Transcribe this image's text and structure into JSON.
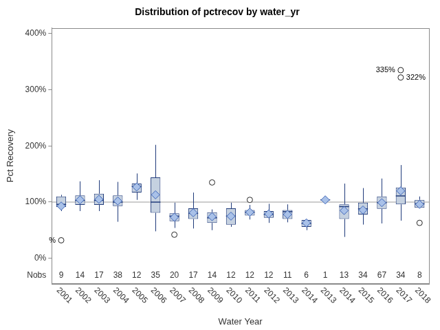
{
  "chart_data": {
    "type": "box",
    "title": "Distribution of pctrecov by water_yr",
    "x_label": "Water Year",
    "y_label": "Pct Recovery",
    "categories": [
      "2001",
      "2002",
      "2003",
      "2004",
      "2005",
      "2006",
      "2007",
      "2008",
      "2009",
      "2010",
      "2011",
      "2012",
      "2013",
      "2014",
      "2013",
      "2014",
      "2015",
      "2016",
      "2017",
      "2018"
    ],
    "whisker_low": [
      84,
      84,
      84,
      65,
      104,
      48,
      54,
      53,
      50,
      56,
      69,
      63,
      64,
      50,
      104,
      38,
      60,
      62,
      67,
      89
    ],
    "q1": [
      91,
      95,
      95,
      93,
      117,
      81,
      66,
      70,
      63,
      60,
      76,
      72,
      70,
      56,
      104,
      70,
      78,
      88,
      96,
      90
    ],
    "median": [
      96,
      103,
      103,
      100,
      128,
      100,
      75,
      80,
      72,
      75,
      82,
      78,
      83,
      62,
      104,
      92,
      88,
      99,
      111,
      97
    ],
    "q3": [
      110,
      112,
      115,
      112,
      133,
      144,
      80,
      89,
      82,
      89,
      86,
      84,
      86,
      68,
      104,
      96,
      99,
      110,
      126,
      104
    ],
    "whisker_high": [
      113,
      137,
      139,
      136,
      151,
      202,
      99,
      117,
      87,
      99,
      95,
      97,
      96,
      69,
      104,
      133,
      125,
      142,
      166,
      110
    ],
    "mean": [
      93,
      104,
      105,
      102,
      127,
      113,
      73,
      81,
      74,
      75,
      82,
      79,
      78,
      63,
      104,
      85,
      86,
      99,
      120,
      96
    ],
    "outliers": [
      [
        32
      ],
      [],
      [],
      [],
      [],
      [],
      [
        42
      ],
      [],
      [
        135
      ],
      [],
      [
        104
      ],
      [],
      [],
      [],
      [],
      [],
      [],
      [],
      [
        335,
        322
      ],
      [
        63
      ]
    ],
    "n_label": "Nobs",
    "n": [
      9,
      14,
      17,
      38,
      12,
      35,
      20,
      17,
      14,
      12,
      12,
      12,
      11,
      6,
      1,
      13,
      34,
      67,
      34,
      8
    ],
    "reference_line": 100,
    "annotations": [
      {
        "x": 0,
        "y": 32,
        "text": "%"
      },
      {
        "x": 18,
        "y": 335,
        "text": "335%"
      },
      {
        "x": 18,
        "y": 322,
        "text": "322%"
      }
    ],
    "ylim": [
      -45,
      410
    ],
    "yticks": [
      {
        "value": 0,
        "label": "0%"
      },
      {
        "value": 100,
        "label": "100%"
      },
      {
        "value": 200,
        "label": "200%"
      },
      {
        "value": 300,
        "label": "300%"
      },
      {
        "value": 400,
        "label": "400%"
      }
    ],
    "grid": false,
    "color": "#c5d1e0"
  }
}
